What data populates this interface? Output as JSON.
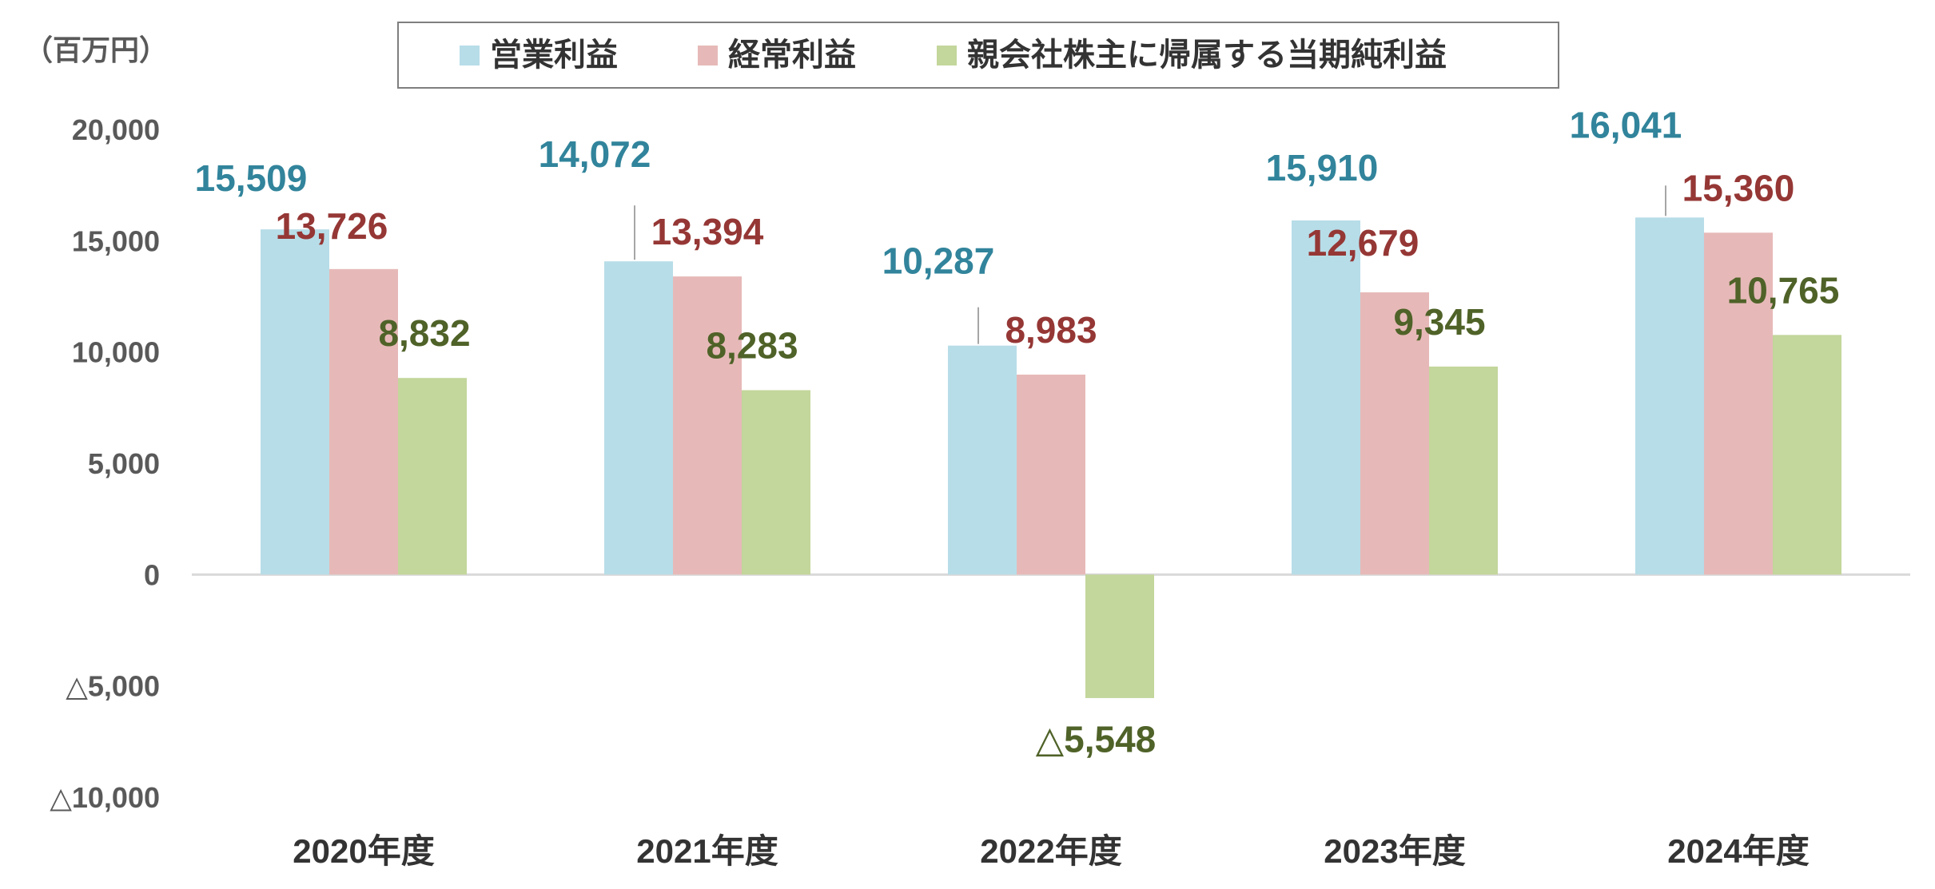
{
  "chart_data": {
    "type": "bar",
    "unit_label": "（百万円）",
    "categories": [
      "2020年度",
      "2021年度",
      "2022年度",
      "2023年度",
      "2024年度"
    ],
    "ylim": [
      -10000,
      20000
    ],
    "yticks": [
      {
        "value": 20000,
        "label": "20,000"
      },
      {
        "value": 15000,
        "label": "15,000"
      },
      {
        "value": 10000,
        "label": "10,000"
      },
      {
        "value": 5000,
        "label": "5,000"
      },
      {
        "value": 0,
        "label": "0"
      },
      {
        "value": -5000,
        "label": "△5,000"
      },
      {
        "value": -10000,
        "label": "△10,000"
      }
    ],
    "legend_position": "top",
    "series": [
      {
        "name": "営業利益",
        "color": "#B7DDE8",
        "label_color": "#31849B",
        "values": [
          15509,
          14072,
          10287,
          15910,
          16041
        ],
        "labels": [
          "15,509",
          "14,072",
          "10,287",
          "15,910",
          "16,041"
        ]
      },
      {
        "name": "経常利益",
        "color": "#E6B9B8",
        "label_color": "#953735",
        "values": [
          13726,
          13394,
          8983,
          12679,
          15360
        ],
        "labels": [
          "13,726",
          "13,394",
          "8,983",
          "12,679",
          "15,360"
        ]
      },
      {
        "name": "親会社株主に帰属する当期純利益",
        "color": "#C3D69B",
        "label_color": "#4F6228",
        "values": [
          8832,
          8283,
          -5548,
          9345,
          10765
        ],
        "labels": [
          "8,832",
          "8,283",
          "△5,548",
          "9,345",
          "10,765"
        ]
      }
    ]
  }
}
